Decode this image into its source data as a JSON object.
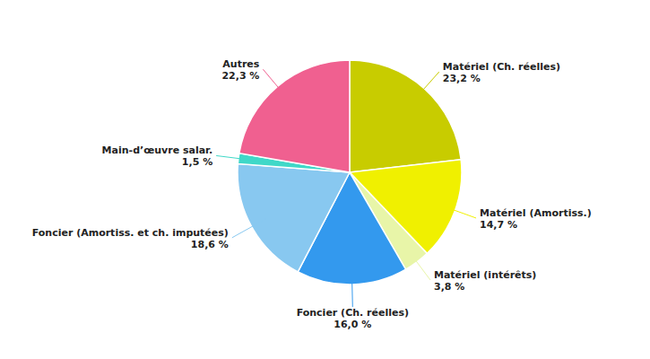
{
  "chart_data": {
    "type": "pie",
    "categories": [
      "Matériel (Ch. réelles)",
      "Matériel (Amortiss.)",
      "Matériel (intérêts)",
      "Foncier (Ch. réelles)",
      "Foncier (Amortiss. et ch. imputées)",
      "Main-d’œuvre salar.",
      "Autres"
    ],
    "values": [
      23.2,
      14.7,
      3.8,
      16.0,
      18.6,
      1.5,
      22.3
    ],
    "value_labels": [
      "23,2 %",
      "14,7 %",
      "3,8 %",
      "16,0 %",
      "18,6 %",
      "1,5 %",
      "22,3 %"
    ],
    "colors": [
      "#c8cc00",
      "#f0f000",
      "#e8f5a8",
      "#3399ee",
      "#88c8f0",
      "#40d8c8",
      "#f06090"
    ],
    "data_labels": true
  }
}
